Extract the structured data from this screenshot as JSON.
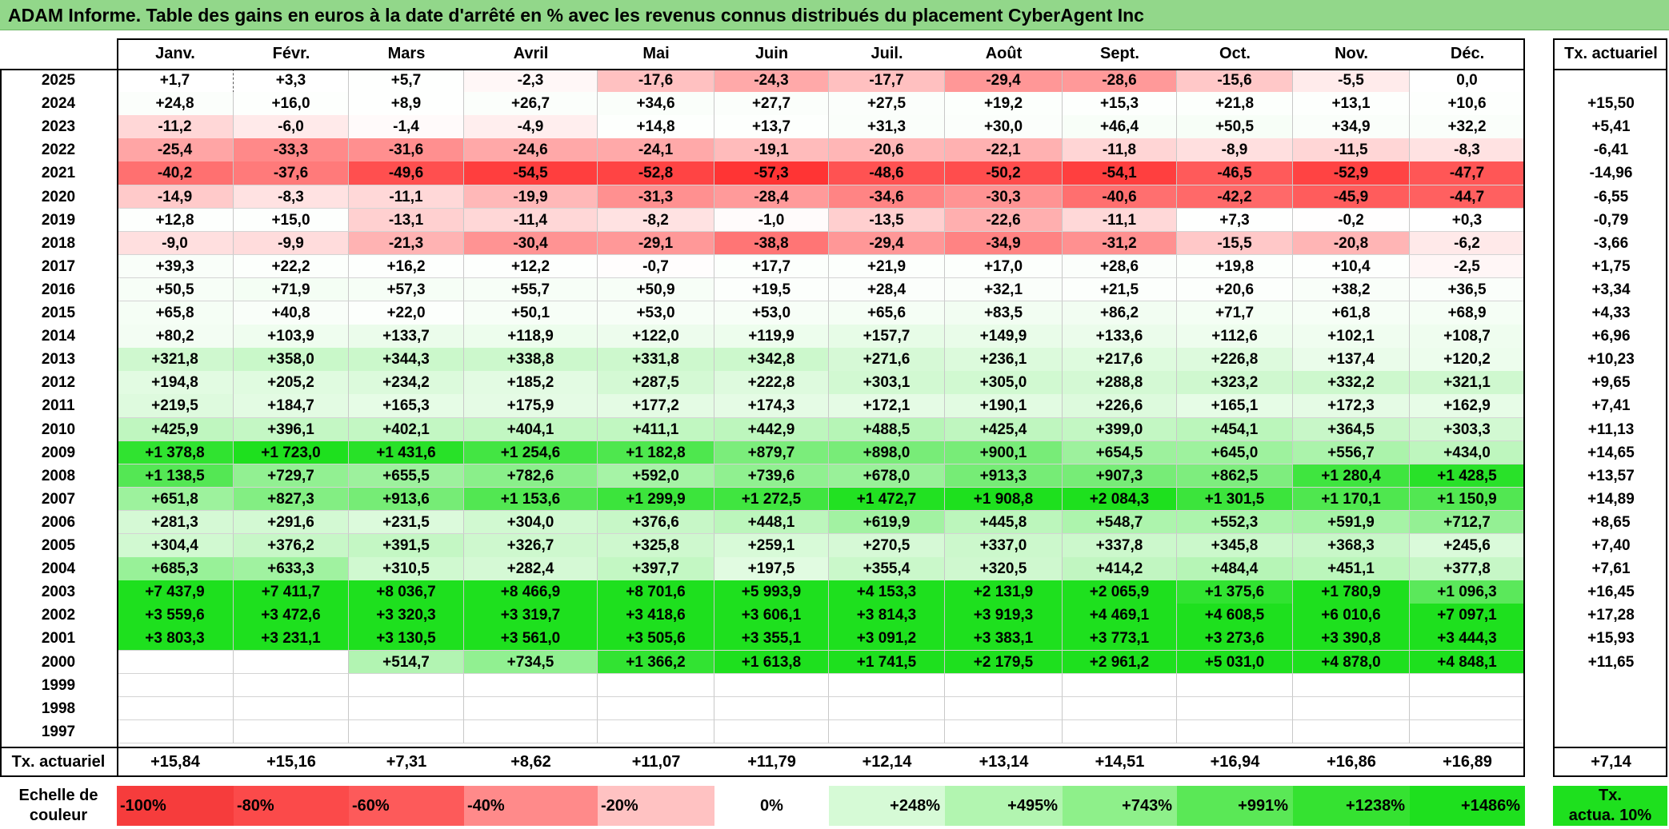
{
  "title": "ADAM Informe. Table des gains en euros à la date d'arrêté en % avec les revenus connus distribués du placement CyberAgent Inc",
  "chart_data": {
    "type": "table",
    "months": [
      "Janv.",
      "Févr.",
      "Mars",
      "Avril",
      "Mai",
      "Juin",
      "Juil.",
      "Août",
      "Sept.",
      "Oct.",
      "Nov.",
      "Déc."
    ],
    "annual_header": "Tx. actuariel",
    "rows": [
      {
        "year": "2025",
        "values": [
          "+1,7",
          "+3,3",
          "+5,7",
          "-2,3",
          "-17,6",
          "-24,3",
          "-17,7",
          "-29,4",
          "-28,6",
          "-15,6",
          "-5,5",
          "0,0"
        ],
        "rate": ""
      },
      {
        "year": "2024",
        "values": [
          "+24,8",
          "+16,0",
          "+8,9",
          "+26,7",
          "+34,6",
          "+27,7",
          "+27,5",
          "+19,2",
          "+15,3",
          "+21,8",
          "+13,1",
          "+10,6"
        ],
        "rate": "+15,50"
      },
      {
        "year": "2023",
        "values": [
          "-11,2",
          "-6,0",
          "-1,4",
          "-4,9",
          "+14,8",
          "+13,7",
          "+31,3",
          "+30,0",
          "+46,4",
          "+50,5",
          "+34,9",
          "+32,2"
        ],
        "rate": "+5,41"
      },
      {
        "year": "2022",
        "values": [
          "-25,4",
          "-33,3",
          "-31,6",
          "-24,6",
          "-24,1",
          "-19,1",
          "-20,6",
          "-22,1",
          "-11,8",
          "-8,9",
          "-11,5",
          "-8,3"
        ],
        "rate": "-6,41"
      },
      {
        "year": "2021",
        "values": [
          "-40,2",
          "-37,6",
          "-49,6",
          "-54,5",
          "-52,8",
          "-57,3",
          "-48,6",
          "-50,2",
          "-54,1",
          "-46,5",
          "-52,9",
          "-47,7"
        ],
        "rate": "-14,96"
      },
      {
        "year": "2020",
        "values": [
          "-14,9",
          "-8,3",
          "-11,1",
          "-19,9",
          "-31,3",
          "-28,4",
          "-34,6",
          "-30,3",
          "-40,6",
          "-42,2",
          "-45,9",
          "-44,7"
        ],
        "rate": "-6,55"
      },
      {
        "year": "2019",
        "values": [
          "+12,8",
          "+15,0",
          "-13,1",
          "-11,4",
          "-8,2",
          "-1,0",
          "-13,5",
          "-22,6",
          "-11,1",
          "+7,3",
          "-0,2",
          "+0,3"
        ],
        "rate": "-0,79"
      },
      {
        "year": "2018",
        "values": [
          "-9,0",
          "-9,9",
          "-21,3",
          "-30,4",
          "-29,1",
          "-38,8",
          "-29,4",
          "-34,9",
          "-31,2",
          "-15,5",
          "-20,8",
          "-6,2"
        ],
        "rate": "-3,66"
      },
      {
        "year": "2017",
        "values": [
          "+39,3",
          "+22,2",
          "+16,2",
          "+12,2",
          "-0,7",
          "+17,7",
          "+21,9",
          "+17,0",
          "+28,6",
          "+19,8",
          "+10,4",
          "-2,5"
        ],
        "rate": "+1,75"
      },
      {
        "year": "2016",
        "values": [
          "+50,5",
          "+71,9",
          "+57,3",
          "+55,7",
          "+50,9",
          "+19,5",
          "+28,4",
          "+32,1",
          "+21,5",
          "+20,6",
          "+38,2",
          "+36,5"
        ],
        "rate": "+3,34"
      },
      {
        "year": "2015",
        "values": [
          "+65,8",
          "+40,8",
          "+22,0",
          "+50,1",
          "+53,0",
          "+53,0",
          "+65,6",
          "+83,5",
          "+86,2",
          "+71,7",
          "+61,8",
          "+68,9"
        ],
        "rate": "+4,33"
      },
      {
        "year": "2014",
        "values": [
          "+80,2",
          "+103,9",
          "+133,7",
          "+118,9",
          "+122,0",
          "+119,9",
          "+157,7",
          "+149,9",
          "+133,6",
          "+112,6",
          "+102,1",
          "+108,7"
        ],
        "rate": "+6,96"
      },
      {
        "year": "2013",
        "values": [
          "+321,8",
          "+358,0",
          "+344,3",
          "+338,8",
          "+331,8",
          "+342,8",
          "+271,6",
          "+236,1",
          "+217,6",
          "+226,8",
          "+137,4",
          "+120,2"
        ],
        "rate": "+10,23"
      },
      {
        "year": "2012",
        "values": [
          "+194,8",
          "+205,2",
          "+234,2",
          "+185,2",
          "+287,5",
          "+222,8",
          "+303,1",
          "+305,0",
          "+288,8",
          "+323,2",
          "+332,2",
          "+321,1"
        ],
        "rate": "+9,65"
      },
      {
        "year": "2011",
        "values": [
          "+219,5",
          "+184,7",
          "+165,3",
          "+175,9",
          "+177,2",
          "+174,3",
          "+172,1",
          "+190,1",
          "+226,6",
          "+165,1",
          "+172,3",
          "+162,9"
        ],
        "rate": "+7,41"
      },
      {
        "year": "2010",
        "values": [
          "+425,9",
          "+396,1",
          "+402,1",
          "+404,1",
          "+411,1",
          "+442,9",
          "+488,5",
          "+425,4",
          "+399,0",
          "+454,1",
          "+364,5",
          "+303,3"
        ],
        "rate": "+11,13"
      },
      {
        "year": "2009",
        "values": [
          "+1 378,8",
          "+1 723,0",
          "+1 431,6",
          "+1 254,6",
          "+1 182,8",
          "+879,7",
          "+898,0",
          "+900,1",
          "+654,5",
          "+645,0",
          "+556,7",
          "+434,0"
        ],
        "rate": "+14,65"
      },
      {
        "year": "2008",
        "values": [
          "+1 138,5",
          "+729,7",
          "+655,5",
          "+782,6",
          "+592,0",
          "+739,6",
          "+678,0",
          "+913,3",
          "+907,3",
          "+862,5",
          "+1 280,4",
          "+1 428,5"
        ],
        "rate": "+13,57"
      },
      {
        "year": "2007",
        "values": [
          "+651,8",
          "+827,3",
          "+913,6",
          "+1 153,6",
          "+1 299,9",
          "+1 272,5",
          "+1 472,7",
          "+1 908,8",
          "+2 084,3",
          "+1 301,5",
          "+1 170,1",
          "+1 150,9"
        ],
        "rate": "+14,89"
      },
      {
        "year": "2006",
        "values": [
          "+281,3",
          "+291,6",
          "+231,5",
          "+304,0",
          "+376,6",
          "+448,1",
          "+619,9",
          "+445,8",
          "+548,7",
          "+552,3",
          "+591,9",
          "+712,7"
        ],
        "rate": "+8,65"
      },
      {
        "year": "2005",
        "values": [
          "+304,4",
          "+376,2",
          "+391,5",
          "+326,7",
          "+325,8",
          "+259,1",
          "+270,5",
          "+337,0",
          "+337,8",
          "+345,8",
          "+368,3",
          "+245,6"
        ],
        "rate": "+7,40"
      },
      {
        "year": "2004",
        "values": [
          "+685,3",
          "+633,3",
          "+310,5",
          "+282,4",
          "+397,7",
          "+197,5",
          "+355,4",
          "+320,5",
          "+414,2",
          "+484,4",
          "+451,1",
          "+377,8"
        ],
        "rate": "+7,61"
      },
      {
        "year": "2003",
        "values": [
          "+7 437,9",
          "+7 411,7",
          "+8 036,7",
          "+8 466,9",
          "+8 701,6",
          "+5 993,9",
          "+4 153,3",
          "+2 131,9",
          "+2 065,9",
          "+1 375,6",
          "+1 780,9",
          "+1 096,3"
        ],
        "rate": "+16,45"
      },
      {
        "year": "2002",
        "values": [
          "+3 559,6",
          "+3 472,6",
          "+3 320,3",
          "+3 319,7",
          "+3 418,6",
          "+3 606,1",
          "+3 814,3",
          "+3 919,3",
          "+4 469,1",
          "+4 608,5",
          "+6 010,6",
          "+7 097,1"
        ],
        "rate": "+17,28"
      },
      {
        "year": "2001",
        "values": [
          "+3 803,3",
          "+3 231,1",
          "+3 130,5",
          "+3 561,0",
          "+3 505,6",
          "+3 355,1",
          "+3 091,2",
          "+3 383,1",
          "+3 773,1",
          "+3 273,6",
          "+3 390,8",
          "+3 444,3"
        ],
        "rate": "+15,93"
      },
      {
        "year": "2000",
        "values": [
          "",
          "",
          "+514,7",
          "+734,5",
          "+1 366,2",
          "+1 613,8",
          "+1 741,5",
          "+2 179,5",
          "+2 961,2",
          "+5 031,0",
          "+4 878,0",
          "+4 848,1"
        ],
        "rate": "+11,65"
      },
      {
        "year": "1999",
        "values": [
          "",
          "",
          "",
          "",
          "",
          "",
          "",
          "",
          "",
          "",
          "",
          ""
        ],
        "rate": ""
      },
      {
        "year": "1998",
        "values": [
          "",
          "",
          "",
          "",
          "",
          "",
          "",
          "",
          "",
          "",
          "",
          ""
        ],
        "rate": ""
      },
      {
        "year": "1997",
        "values": [
          "",
          "",
          "",
          "",
          "",
          "",
          "",
          "",
          "",
          "",
          "",
          ""
        ],
        "rate": ""
      }
    ],
    "footer": {
      "label": "Tx. actuariel",
      "values": [
        "+15,84",
        "+15,16",
        "+7,31",
        "+8,62",
        "+11,07",
        "+11,79",
        "+12,14",
        "+13,14",
        "+14,51",
        "+16,94",
        "+16,86",
        "+16,89"
      ],
      "total": "+7,14"
    },
    "scale": {
      "label_line1": "Echelle de",
      "label_line2": "couleur",
      "steps": [
        "-100%",
        "-80%",
        "-60%",
        "-40%",
        "-20%",
        "0%",
        "+248%",
        "+495%",
        "+743%",
        "+991%",
        "+1238%",
        "+1486%"
      ],
      "rate_line1": "Tx.",
      "rate_line2": "actua. 10%"
    },
    "colors": {
      "negative_max": "#ff2a2a",
      "neutral": "#ffffff",
      "positive_max": "#1ee01e"
    }
  }
}
